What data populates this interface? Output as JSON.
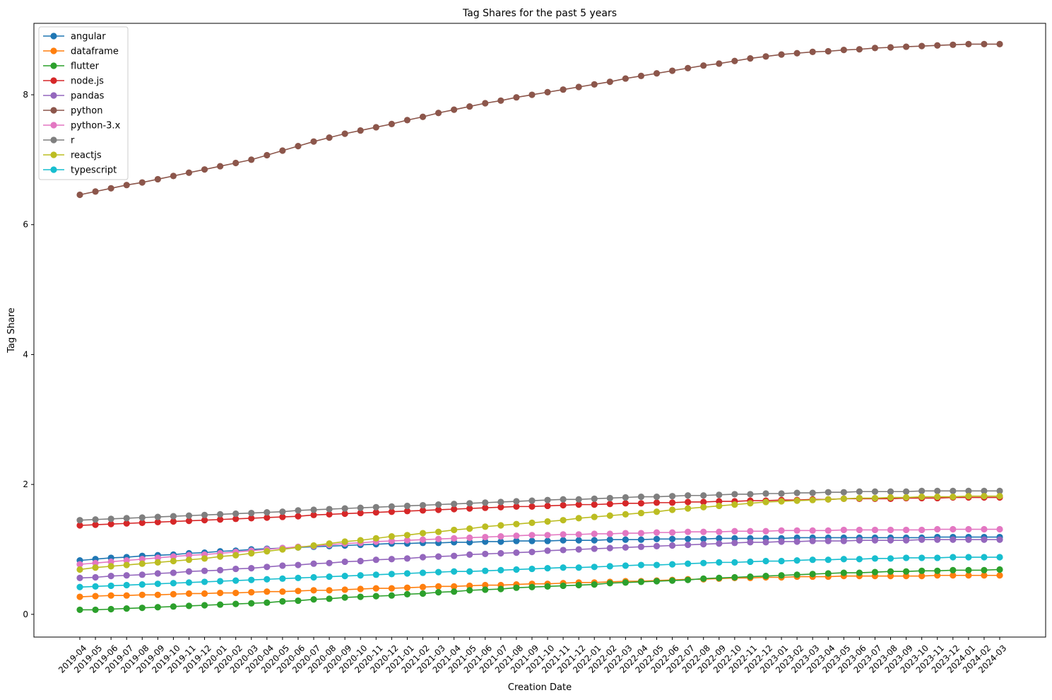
{
  "chart_data": {
    "type": "line",
    "title": "Tag Shares for the past 5 years",
    "xlabel": "Creation Date",
    "ylabel": "Tag Share",
    "ylim": [
      -0.35,
      9.1
    ],
    "yticks": [
      0,
      2,
      4,
      6,
      8
    ],
    "grid": false,
    "legend_position": "top-left",
    "x": [
      "2019-04",
      "2019-05",
      "2019-06",
      "2019-07",
      "2019-08",
      "2019-09",
      "2019-10",
      "2019-11",
      "2019-12",
      "2020-01",
      "2020-02",
      "2020-03",
      "2020-04",
      "2020-05",
      "2020-06",
      "2020-07",
      "2020-08",
      "2020-09",
      "2020-10",
      "2020-11",
      "2020-12",
      "2021-01",
      "2021-02",
      "2021-03",
      "2021-04",
      "2021-05",
      "2021-06",
      "2021-07",
      "2021-08",
      "2021-09",
      "2021-10",
      "2021-11",
      "2021-12",
      "2022-01",
      "2022-02",
      "2022-03",
      "2022-04",
      "2022-05",
      "2022-06",
      "2022-07",
      "2022-08",
      "2022-09",
      "2022-10",
      "2022-11",
      "2022-12",
      "2023-01",
      "2023-02",
      "2023-03",
      "2023-04",
      "2023-05",
      "2023-06",
      "2023-07",
      "2023-08",
      "2023-09",
      "2023-10",
      "2023-11",
      "2023-12",
      "2024-01",
      "2024-02",
      "2024-03"
    ],
    "series": [
      {
        "name": "angular",
        "color": "#1f77b4",
        "values": [
          0.83,
          0.85,
          0.87,
          0.88,
          0.9,
          0.91,
          0.92,
          0.94,
          0.95,
          0.97,
          0.98,
          1.0,
          1.01,
          1.02,
          1.03,
          1.04,
          1.05,
          1.06,
          1.07,
          1.08,
          1.09,
          1.09,
          1.1,
          1.1,
          1.11,
          1.11,
          1.12,
          1.12,
          1.13,
          1.13,
          1.13,
          1.14,
          1.14,
          1.14,
          1.15,
          1.15,
          1.15,
          1.16,
          1.16,
          1.16,
          1.16,
          1.17,
          1.17,
          1.17,
          1.17,
          1.17,
          1.18,
          1.18,
          1.18,
          1.18,
          1.18,
          1.18,
          1.18,
          1.18,
          1.18,
          1.19,
          1.19,
          1.19,
          1.19,
          1.19
        ]
      },
      {
        "name": "dataframe",
        "color": "#ff7f0e",
        "values": [
          0.27,
          0.28,
          0.29,
          0.29,
          0.3,
          0.3,
          0.31,
          0.32,
          0.32,
          0.33,
          0.33,
          0.34,
          0.35,
          0.35,
          0.36,
          0.37,
          0.37,
          0.38,
          0.39,
          0.4,
          0.4,
          0.41,
          0.42,
          0.43,
          0.43,
          0.44,
          0.45,
          0.45,
          0.46,
          0.47,
          0.47,
          0.48,
          0.49,
          0.49,
          0.5,
          0.51,
          0.51,
          0.52,
          0.53,
          0.54,
          0.54,
          0.55,
          0.56,
          0.56,
          0.57,
          0.57,
          0.58,
          0.58,
          0.58,
          0.59,
          0.59,
          0.59,
          0.59,
          0.59,
          0.59,
          0.6,
          0.6,
          0.6,
          0.6,
          0.6
        ]
      },
      {
        "name": "flutter",
        "color": "#2ca02c",
        "values": [
          0.07,
          0.07,
          0.08,
          0.09,
          0.1,
          0.11,
          0.12,
          0.13,
          0.14,
          0.15,
          0.16,
          0.17,
          0.18,
          0.2,
          0.21,
          0.23,
          0.24,
          0.26,
          0.27,
          0.28,
          0.29,
          0.31,
          0.32,
          0.34,
          0.35,
          0.37,
          0.38,
          0.39,
          0.41,
          0.42,
          0.43,
          0.44,
          0.45,
          0.46,
          0.48,
          0.49,
          0.5,
          0.51,
          0.52,
          0.53,
          0.55,
          0.56,
          0.57,
          0.58,
          0.59,
          0.6,
          0.61,
          0.62,
          0.63,
          0.64,
          0.64,
          0.65,
          0.66,
          0.66,
          0.67,
          0.67,
          0.68,
          0.68,
          0.68,
          0.69
        ]
      },
      {
        "name": "node.js",
        "color": "#d62728",
        "values": [
          1.37,
          1.38,
          1.39,
          1.4,
          1.41,
          1.42,
          1.43,
          1.44,
          1.45,
          1.46,
          1.47,
          1.48,
          1.49,
          1.5,
          1.51,
          1.53,
          1.54,
          1.55,
          1.56,
          1.57,
          1.58,
          1.59,
          1.6,
          1.61,
          1.62,
          1.63,
          1.64,
          1.65,
          1.66,
          1.66,
          1.67,
          1.68,
          1.69,
          1.69,
          1.7,
          1.71,
          1.71,
          1.72,
          1.72,
          1.73,
          1.73,
          1.74,
          1.74,
          1.75,
          1.75,
          1.76,
          1.76,
          1.77,
          1.77,
          1.78,
          1.78,
          1.78,
          1.78,
          1.79,
          1.79,
          1.79,
          1.8,
          1.8,
          1.8,
          1.8
        ]
      },
      {
        "name": "pandas",
        "color": "#9467bd",
        "values": [
          0.56,
          0.57,
          0.59,
          0.6,
          0.61,
          0.63,
          0.64,
          0.66,
          0.67,
          0.68,
          0.7,
          0.71,
          0.73,
          0.75,
          0.76,
          0.78,
          0.79,
          0.81,
          0.82,
          0.84,
          0.85,
          0.86,
          0.88,
          0.89,
          0.9,
          0.92,
          0.93,
          0.94,
          0.95,
          0.96,
          0.98,
          0.99,
          1.0,
          1.01,
          1.02,
          1.03,
          1.04,
          1.05,
          1.06,
          1.07,
          1.08,
          1.09,
          1.1,
          1.11,
          1.11,
          1.12,
          1.12,
          1.13,
          1.13,
          1.13,
          1.14,
          1.14,
          1.14,
          1.14,
          1.15,
          1.15,
          1.15,
          1.15,
          1.15,
          1.15
        ]
      },
      {
        "name": "python",
        "color": "#8c564b",
        "values": [
          6.46,
          6.51,
          6.56,
          6.61,
          6.65,
          6.7,
          6.75,
          6.8,
          6.85,
          6.9,
          6.95,
          7.0,
          7.07,
          7.14,
          7.21,
          7.28,
          7.34,
          7.4,
          7.45,
          7.5,
          7.55,
          7.61,
          7.66,
          7.72,
          7.77,
          7.82,
          7.87,
          7.91,
          7.96,
          8.0,
          8.04,
          8.08,
          8.12,
          8.16,
          8.2,
          8.25,
          8.29,
          8.33,
          8.37,
          8.41,
          8.45,
          8.48,
          8.52,
          8.56,
          8.59,
          8.62,
          8.64,
          8.66,
          8.67,
          8.69,
          8.7,
          8.72,
          8.73,
          8.74,
          8.75,
          8.76,
          8.77,
          8.78,
          8.78,
          8.78
        ]
      },
      {
        "name": "python-3.x",
        "color": "#e377c2",
        "values": [
          0.77,
          0.79,
          0.81,
          0.83,
          0.85,
          0.87,
          0.89,
          0.91,
          0.92,
          0.94,
          0.96,
          0.98,
          1.0,
          1.02,
          1.04,
          1.05,
          1.07,
          1.09,
          1.1,
          1.12,
          1.13,
          1.14,
          1.15,
          1.16,
          1.17,
          1.18,
          1.19,
          1.2,
          1.21,
          1.22,
          1.22,
          1.23,
          1.23,
          1.24,
          1.24,
          1.25,
          1.25,
          1.26,
          1.26,
          1.27,
          1.27,
          1.27,
          1.28,
          1.28,
          1.28,
          1.29,
          1.29,
          1.29,
          1.29,
          1.3,
          1.3,
          1.3,
          1.3,
          1.3,
          1.3,
          1.31,
          1.31,
          1.31,
          1.31,
          1.31
        ]
      },
      {
        "name": "r",
        "color": "#7f7f7f",
        "values": [
          1.45,
          1.46,
          1.47,
          1.48,
          1.49,
          1.5,
          1.51,
          1.52,
          1.53,
          1.54,
          1.55,
          1.56,
          1.57,
          1.58,
          1.6,
          1.61,
          1.62,
          1.63,
          1.64,
          1.65,
          1.66,
          1.67,
          1.68,
          1.69,
          1.7,
          1.71,
          1.72,
          1.73,
          1.74,
          1.75,
          1.76,
          1.77,
          1.77,
          1.78,
          1.79,
          1.8,
          1.81,
          1.81,
          1.82,
          1.83,
          1.83,
          1.84,
          1.85,
          1.85,
          1.86,
          1.86,
          1.87,
          1.87,
          1.88,
          1.88,
          1.89,
          1.89,
          1.89,
          1.89,
          1.9,
          1.9,
          1.9,
          1.9,
          1.9,
          1.9
        ]
      },
      {
        "name": "reactjs",
        "color": "#bcbd22",
        "values": [
          0.69,
          0.72,
          0.74,
          0.76,
          0.78,
          0.8,
          0.82,
          0.84,
          0.86,
          0.89,
          0.91,
          0.94,
          0.97,
          1.0,
          1.03,
          1.06,
          1.09,
          1.12,
          1.14,
          1.17,
          1.2,
          1.22,
          1.25,
          1.27,
          1.3,
          1.32,
          1.35,
          1.37,
          1.39,
          1.41,
          1.43,
          1.45,
          1.48,
          1.5,
          1.52,
          1.54,
          1.56,
          1.58,
          1.61,
          1.63,
          1.65,
          1.67,
          1.69,
          1.71,
          1.73,
          1.74,
          1.75,
          1.76,
          1.77,
          1.78,
          1.79,
          1.79,
          1.8,
          1.8,
          1.81,
          1.81,
          1.81,
          1.82,
          1.82,
          1.82
        ]
      },
      {
        "name": "typescript",
        "color": "#17becf",
        "values": [
          0.42,
          0.43,
          0.44,
          0.45,
          0.46,
          0.47,
          0.48,
          0.49,
          0.5,
          0.51,
          0.52,
          0.53,
          0.54,
          0.55,
          0.56,
          0.57,
          0.58,
          0.59,
          0.6,
          0.61,
          0.62,
          0.63,
          0.64,
          0.65,
          0.66,
          0.66,
          0.67,
          0.68,
          0.69,
          0.7,
          0.71,
          0.72,
          0.72,
          0.73,
          0.74,
          0.75,
          0.76,
          0.76,
          0.77,
          0.78,
          0.79,
          0.8,
          0.8,
          0.81,
          0.82,
          0.82,
          0.83,
          0.84,
          0.84,
          0.85,
          0.85,
          0.86,
          0.86,
          0.87,
          0.87,
          0.87,
          0.88,
          0.88,
          0.88,
          0.88
        ]
      }
    ]
  }
}
